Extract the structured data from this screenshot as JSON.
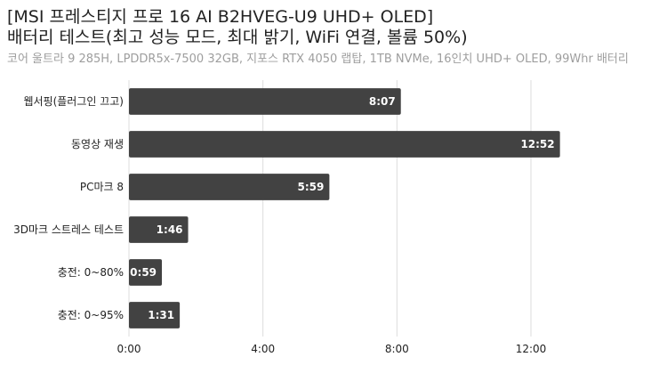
{
  "chart_data": {
    "type": "bar",
    "orientation": "horizontal",
    "title_lines": [
      "[MSI 프레스티지 프로 16 AI B2HVEG-U9 UHD+ OLED]",
      "배터리 테스트(최고 성능 모드, 최대 밝기, WiFi 연결, 볼륨 50%)"
    ],
    "subtitle": "코어 울트라 9 285H, LPDDR5x-7500 32GB, 지포스 RTX 4050 랩탑, 1TB NVMe, 16인치 UHD+ OLED, 99Whr 배터리",
    "categories": [
      "웹서핑(플러그인 끄고)",
      "동영상 재생",
      "PC마크 8",
      "3D마크 스트레스 테스트",
      "충전: 0~80%",
      "충전: 0~95%"
    ],
    "values_minutes": [
      487,
      772,
      359,
      106,
      59,
      91
    ],
    "value_labels": [
      "8:07",
      "12:52",
      "5:59",
      "1:46",
      "0:59",
      "1:31"
    ],
    "x_ticks": [
      "0:00",
      "4:00",
      "8:00",
      "12:00"
    ],
    "x_tick_values_minutes": [
      0,
      240,
      480,
      720
    ],
    "xlim_minutes": [
      0,
      900
    ],
    "grid": true,
    "colors": {
      "bar": "#424242",
      "grid": "#dcdcdc",
      "label_inside": "#ffffff",
      "axis_text": "#222222"
    }
  }
}
